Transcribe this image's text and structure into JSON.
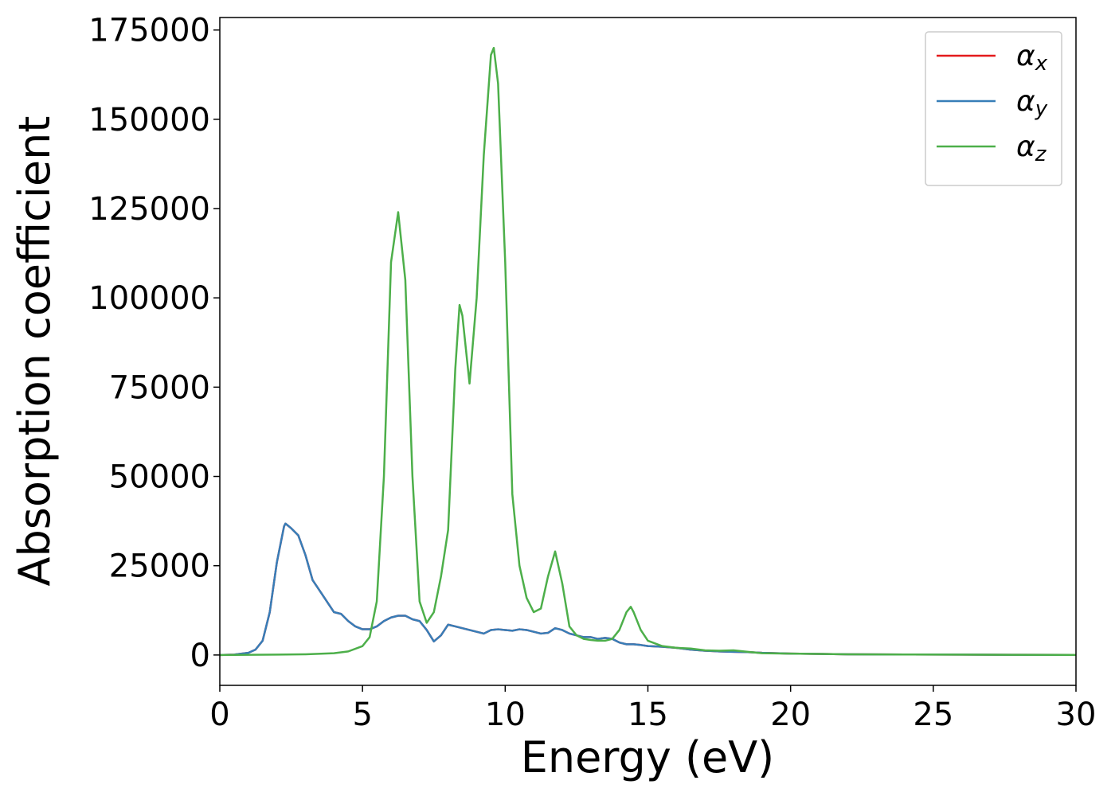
{
  "chart_data": {
    "type": "line",
    "xlabel": "Energy (eV)",
    "ylabel": "Absorption coefficient",
    "xlim": [
      0,
      30
    ],
    "xticks": [
      0,
      5,
      10,
      15,
      20,
      25,
      30
    ],
    "ylim": [
      -8500,
      178500
    ],
    "yticks": [
      0,
      25000,
      50000,
      75000,
      100000,
      125000,
      150000,
      175000
    ],
    "legend": "upper right",
    "series": [
      {
        "name": "αx",
        "color": "#e41a1c",
        "x": [
          0,
          0.5,
          1,
          1.25,
          1.5,
          1.75,
          2,
          2.25,
          2.3,
          2.5,
          2.75,
          3,
          3.25,
          3.5,
          3.75,
          4,
          4.25,
          4.5,
          4.75,
          5,
          5.25,
          5.5,
          5.75,
          6,
          6.25,
          6.5,
          6.75,
          7,
          7.25,
          7.5,
          7.75,
          8,
          8.25,
          8.5,
          8.75,
          9,
          9.25,
          9.5,
          9.75,
          10,
          10.25,
          10.5,
          10.75,
          11,
          11.25,
          11.5,
          11.75,
          12,
          12.25,
          12.5,
          12.75,
          13,
          13.25,
          13.5,
          13.75,
          14,
          14.25,
          14.5,
          14.75,
          15,
          15.5,
          16,
          16.5,
          17,
          17.5,
          18,
          18.5,
          19,
          20,
          21,
          22,
          24,
          26,
          28,
          30
        ],
        "values": [
          0,
          100,
          600,
          1500,
          4000,
          12000,
          26000,
          36000,
          36800,
          35500,
          33500,
          28000,
          21000,
          18000,
          15000,
          12000,
          11500,
          9500,
          8000,
          7200,
          7200,
          8000,
          9500,
          10500,
          11000,
          11000,
          10000,
          9500,
          7000,
          3800,
          5500,
          8500,
          8000,
          7500,
          7000,
          6500,
          6000,
          7000,
          7200,
          7000,
          6800,
          7200,
          7000,
          6500,
          6000,
          6200,
          7500,
          7000,
          6000,
          5500,
          5000,
          5000,
          4500,
          4800,
          4500,
          3500,
          3000,
          3000,
          2800,
          2500,
          2300,
          2000,
          1500,
          1200,
          1000,
          900,
          800,
          600,
          400,
          300,
          200,
          150,
          100,
          50,
          20
        ]
      },
      {
        "name": "αy",
        "color": "#377eb8",
        "x": [
          0,
          0.5,
          1,
          1.25,
          1.5,
          1.75,
          2,
          2.25,
          2.3,
          2.5,
          2.75,
          3,
          3.25,
          3.5,
          3.75,
          4,
          4.25,
          4.5,
          4.75,
          5,
          5.25,
          5.5,
          5.75,
          6,
          6.25,
          6.5,
          6.75,
          7,
          7.25,
          7.5,
          7.75,
          8,
          8.25,
          8.5,
          8.75,
          9,
          9.25,
          9.5,
          9.75,
          10,
          10.25,
          10.5,
          10.75,
          11,
          11.25,
          11.5,
          11.75,
          12,
          12.25,
          12.5,
          12.75,
          13,
          13.25,
          13.5,
          13.75,
          14,
          14.25,
          14.5,
          14.75,
          15,
          15.5,
          16,
          16.5,
          17,
          17.5,
          18,
          18.5,
          19,
          20,
          21,
          22,
          24,
          26,
          28,
          30
        ],
        "values": [
          0,
          100,
          600,
          1500,
          4000,
          12000,
          26000,
          36000,
          36800,
          35500,
          33500,
          28000,
          21000,
          18000,
          15000,
          12000,
          11500,
          9500,
          8000,
          7200,
          7200,
          8000,
          9500,
          10500,
          11000,
          11000,
          10000,
          9500,
          7000,
          3800,
          5500,
          8500,
          8000,
          7500,
          7000,
          6500,
          6000,
          7000,
          7200,
          7000,
          6800,
          7200,
          7000,
          6500,
          6000,
          6200,
          7500,
          7000,
          6000,
          5500,
          5000,
          5000,
          4500,
          4800,
          4500,
          3500,
          3000,
          3000,
          2800,
          2500,
          2300,
          2000,
          1500,
          1200,
          1000,
          900,
          800,
          600,
          400,
          300,
          200,
          150,
          100,
          50,
          20
        ]
      },
      {
        "name": "αz",
        "color": "#4daf4a",
        "x": [
          0,
          1,
          2,
          3,
          4,
          4.5,
          5,
          5.25,
          5.5,
          5.75,
          6,
          6.25,
          6.5,
          6.75,
          7,
          7.25,
          7.5,
          7.75,
          8,
          8.25,
          8.4,
          8.5,
          8.75,
          9,
          9.25,
          9.5,
          9.6,
          9.75,
          10,
          10.25,
          10.5,
          10.75,
          11,
          11.25,
          11.5,
          11.75,
          12,
          12.25,
          12.5,
          12.75,
          13,
          13.25,
          13.5,
          13.75,
          14,
          14.25,
          14.4,
          14.5,
          14.75,
          15,
          15.5,
          16,
          16.5,
          17,
          17.5,
          18,
          18.5,
          19,
          20,
          21,
          22,
          24,
          26,
          28,
          30
        ],
        "values": [
          0,
          50,
          100,
          200,
          500,
          1000,
          2500,
          5000,
          15000,
          50000,
          110000,
          124000,
          105000,
          50000,
          15000,
          9000,
          12000,
          22000,
          35000,
          80000,
          98000,
          95000,
          76000,
          100000,
          140000,
          168000,
          170000,
          160000,
          110000,
          45000,
          25000,
          16000,
          12000,
          13000,
          22000,
          29000,
          20000,
          8000,
          5500,
          4500,
          4200,
          4000,
          4000,
          4500,
          7000,
          12000,
          13500,
          12000,
          7000,
          4000,
          2500,
          2000,
          1800,
          1300,
          1200,
          1300,
          900,
          500,
          400,
          300,
          200,
          150,
          100,
          50,
          20
        ]
      }
    ]
  }
}
